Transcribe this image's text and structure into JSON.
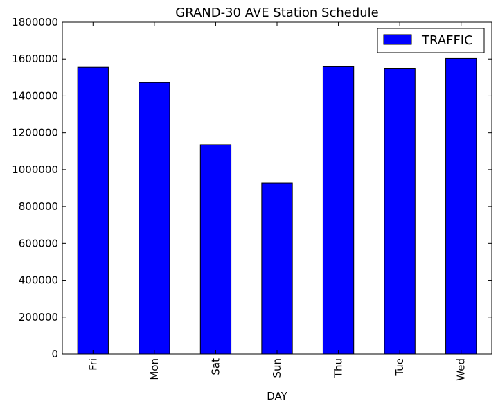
{
  "chart_data": {
    "type": "bar",
    "title": "GRAND-30 AVE Station Schedule",
    "xlabel": "DAY",
    "ylabel": "",
    "categories": [
      "Fri",
      "Mon",
      "Sat",
      "Sun",
      "Thu",
      "Tue",
      "Wed"
    ],
    "series": [
      {
        "name": "TRAFFIC",
        "values": [
          1555000,
          1472000,
          1135000,
          928000,
          1558000,
          1550000,
          1603000
        ],
        "color": "#0000ff"
      }
    ],
    "ylim": [
      0,
      1800000
    ],
    "yticks": [
      0,
      200000,
      400000,
      600000,
      800000,
      1000000,
      1200000,
      1400000,
      1600000,
      1800000
    ],
    "ytick_labels": [
      "0",
      "200000",
      "400000",
      "600000",
      "800000",
      "1000000",
      "1200000",
      "1400000",
      "1600000",
      "1800000"
    ],
    "legend_position": "top-right",
    "grid": false
  }
}
